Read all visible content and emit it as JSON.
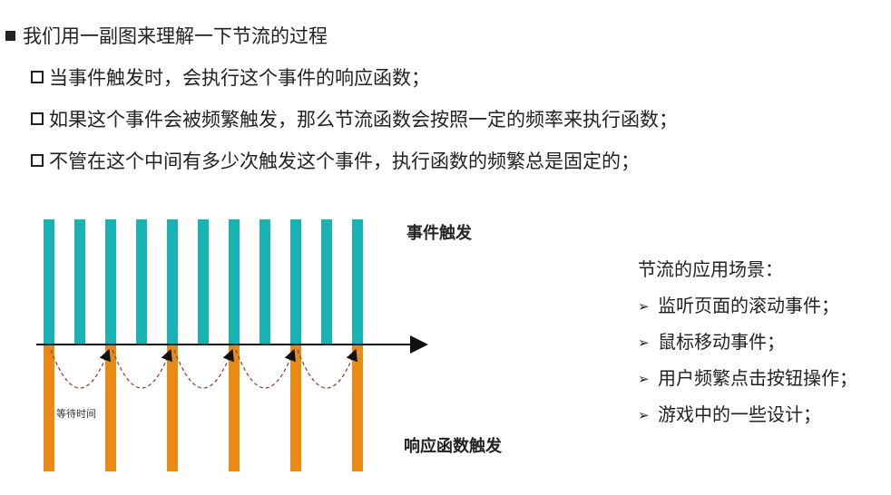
{
  "heading": "我们用一副图来理解一下节流的过程",
  "points": [
    "当事件触发时，会执行这个事件的响应函数；",
    "如果这个事件会被频繁触发，那么节流函数会按照一定的频率来执行函数；",
    "不管在这个中间有多少次触发这个事件，执行函数的频繁总是固定的；"
  ],
  "diagram": {
    "label_top": "事件触发",
    "label_bottom": "响应函数触发",
    "wait_label": "等待时间",
    "colors": {
      "top_bar": "#1ab3b3",
      "bottom_bar": "#e88a14",
      "curve": "#8a4a3a"
    },
    "top_bar_count": 11,
    "bottom_bar_count": 6
  },
  "scenarios": {
    "title": "节流的应用场景：",
    "items": [
      "监听页面的滚动事件；",
      "鼠标移动事件；",
      "用户频繁点击按钮操作；",
      "游戏中的一些设计；"
    ],
    "bullet_glyph": "➢"
  }
}
